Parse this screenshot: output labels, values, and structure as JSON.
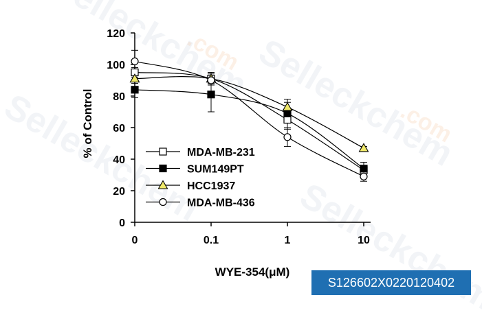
{
  "chart_data": {
    "type": "line",
    "xlabel": "WYE-354(μM)",
    "ylabel": "% of Control",
    "x_scale": "log (0 placed at first tick)",
    "categories": [
      "0",
      "0.1",
      "1",
      "10"
    ],
    "ylim": [
      0,
      120
    ],
    "yticks": [
      "0",
      "20",
      "40",
      "60",
      "80",
      "100",
      "120"
    ],
    "grid": false,
    "legend_position": "lower-left",
    "series": [
      {
        "name": "MDA-MB-231",
        "marker": "open-square",
        "values": [
          95,
          91,
          65,
          33
        ],
        "errors": [
          3,
          3,
          6,
          3
        ]
      },
      {
        "name": "SUM149PT",
        "marker": "filled-square",
        "values": [
          84,
          81,
          69,
          34
        ],
        "errors": [
          5,
          11,
          9,
          4
        ]
      },
      {
        "name": "HCC1937",
        "marker": "yellow-triangle",
        "values": [
          91,
          91,
          73,
          47
        ],
        "errors": [
          3,
          4,
          3,
          1
        ]
      },
      {
        "name": "MDA-MB-436",
        "marker": "open-circle",
        "values": [
          102,
          90,
          54,
          29
        ],
        "errors": [
          7,
          3,
          6,
          3
        ]
      }
    ],
    "colors": {
      "line": "#000000",
      "triangle_fill": "#f0e96a"
    }
  },
  "badge": {
    "text": "S126602X0220120402",
    "color": "#1f6fb2"
  },
  "watermark": {
    "text": "Selleckchem",
    "suffix": ".com"
  }
}
